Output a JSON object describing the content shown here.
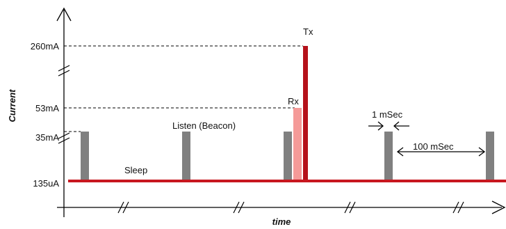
{
  "axes": {
    "y_title": "Current",
    "x_title": "time"
  },
  "current_levels": [
    "260mA",
    "53mA",
    "35mA",
    "135uA"
  ],
  "labels": {
    "tx": "Tx",
    "rx": "Rx",
    "listen": "Listen (Beacon)",
    "sleep": "Sleep",
    "pulse_width": "1 mSec",
    "pulse_period": "100 mSec"
  },
  "colors": {
    "sleep_line": "#c8171f",
    "tx_pulse": "#b5121b",
    "rx_pulse": "#f59a98",
    "listen_pulse": "#808080",
    "axis": "#000000"
  }
}
